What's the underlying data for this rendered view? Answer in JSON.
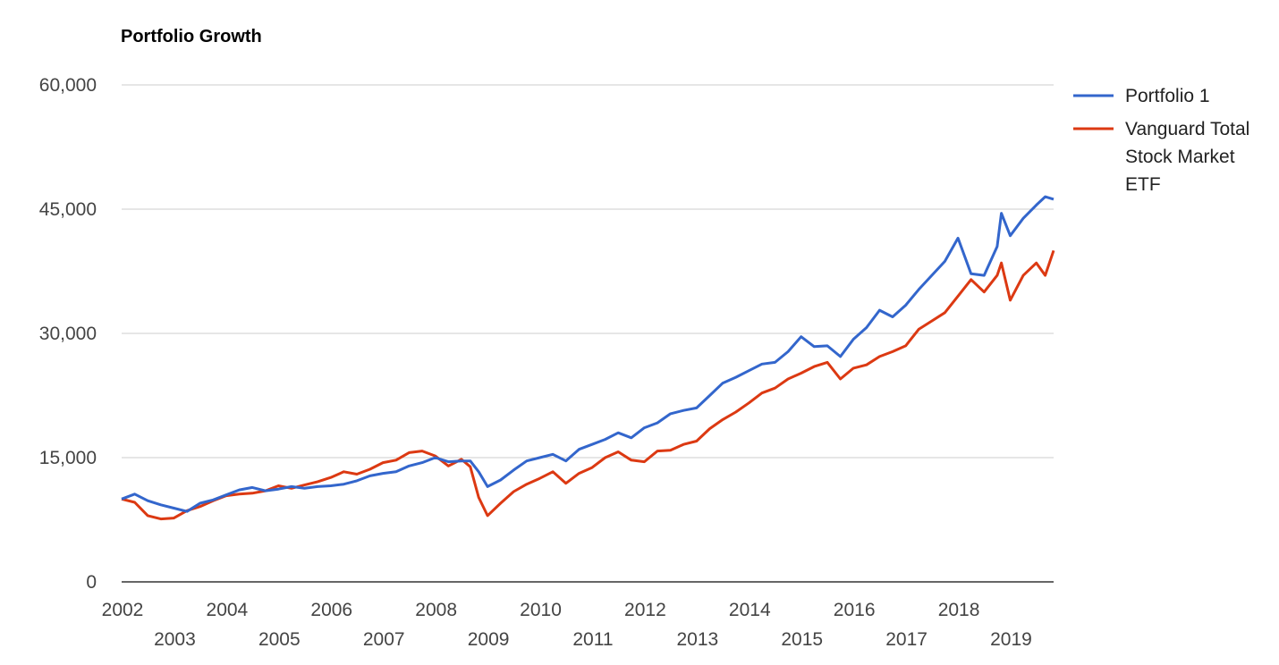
{
  "chart_data": {
    "type": "line",
    "title": "Portfolio Growth",
    "xlabel": "",
    "ylabel": "",
    "xlim": [
      2002.0,
      2019.83
    ],
    "ylim": [
      0,
      60000
    ],
    "y_ticks": [
      0,
      15000,
      30000,
      45000,
      60000
    ],
    "y_tick_labels": [
      "0",
      "15,000",
      "30,000",
      "45,000",
      "60,000"
    ],
    "x_ticks": [
      2002,
      2003,
      2004,
      2005,
      2006,
      2007,
      2008,
      2009,
      2010,
      2011,
      2012,
      2013,
      2014,
      2015,
      2016,
      2017,
      2018,
      2019
    ],
    "x_tick_labels": [
      "2002",
      "2003",
      "2004",
      "2005",
      "2006",
      "2007",
      "2008",
      "2009",
      "2010",
      "2011",
      "2012",
      "2013",
      "2014",
      "2015",
      "2016",
      "2017",
      "2018",
      "2019"
    ],
    "grid": true,
    "legend_position": "right",
    "series": [
      {
        "name": "Portfolio 1",
        "color": "#3366cc",
        "x": [
          2002.0,
          2002.25,
          2002.5,
          2002.75,
          2003.0,
          2003.25,
          2003.5,
          2003.75,
          2004.0,
          2004.25,
          2004.5,
          2004.75,
          2005.0,
          2005.25,
          2005.5,
          2005.75,
          2006.0,
          2006.25,
          2006.5,
          2006.75,
          2007.0,
          2007.25,
          2007.5,
          2007.75,
          2008.0,
          2008.25,
          2008.5,
          2008.67,
          2008.83,
          2009.0,
          2009.25,
          2009.5,
          2009.75,
          2010.0,
          2010.25,
          2010.5,
          2010.75,
          2011.0,
          2011.25,
          2011.5,
          2011.75,
          2012.0,
          2012.25,
          2012.5,
          2012.75,
          2013.0,
          2013.25,
          2013.5,
          2013.75,
          2014.0,
          2014.25,
          2014.5,
          2014.75,
          2015.0,
          2015.25,
          2015.5,
          2015.75,
          2016.0,
          2016.25,
          2016.5,
          2016.75,
          2017.0,
          2017.25,
          2017.5,
          2017.75,
          2018.0,
          2018.25,
          2018.5,
          2018.75,
          2018.83,
          2019.0,
          2019.25,
          2019.5,
          2019.67,
          2019.83
        ],
        "y": [
          10000,
          10600,
          9800,
          9300,
          8900,
          8500,
          9500,
          9900,
          10500,
          11100,
          11400,
          11000,
          11200,
          11500,
          11300,
          11500,
          11600,
          11800,
          12200,
          12800,
          13100,
          13300,
          14000,
          14400,
          15000,
          14500,
          14600,
          14600,
          13300,
          11500,
          12300,
          13500,
          14600,
          15000,
          15400,
          14600,
          16000,
          16600,
          17200,
          18000,
          17400,
          18600,
          19200,
          20300,
          20700,
          21000,
          22500,
          24000,
          24700,
          25500,
          26300,
          26500,
          27800,
          29600,
          28400,
          28500,
          27200,
          29300,
          30700,
          32800,
          32000,
          33400,
          35300,
          37000,
          38700,
          41500,
          37200,
          37000,
          40500,
          44500,
          41800,
          43900,
          45500,
          46500,
          46200
        ]
      },
      {
        "name": "Vanguard Total Stock Market ETF",
        "color": "#dc3912",
        "x": [
          2002.0,
          2002.25,
          2002.5,
          2002.75,
          2003.0,
          2003.25,
          2003.5,
          2003.75,
          2004.0,
          2004.25,
          2004.5,
          2004.75,
          2005.0,
          2005.25,
          2005.5,
          2005.75,
          2006.0,
          2006.25,
          2006.5,
          2006.75,
          2007.0,
          2007.25,
          2007.5,
          2007.75,
          2008.0,
          2008.25,
          2008.5,
          2008.67,
          2008.83,
          2009.0,
          2009.25,
          2009.5,
          2009.75,
          2010.0,
          2010.25,
          2010.5,
          2010.75,
          2011.0,
          2011.25,
          2011.5,
          2011.75,
          2012.0,
          2012.25,
          2012.5,
          2012.75,
          2013.0,
          2013.25,
          2013.5,
          2013.75,
          2014.0,
          2014.25,
          2014.5,
          2014.75,
          2015.0,
          2015.25,
          2015.5,
          2015.75,
          2016.0,
          2016.25,
          2016.5,
          2016.75,
          2017.0,
          2017.25,
          2017.5,
          2017.75,
          2018.0,
          2018.25,
          2018.5,
          2018.75,
          2018.83,
          2019.0,
          2019.25,
          2019.5,
          2019.67,
          2019.83
        ],
        "y": [
          10000,
          9600,
          8000,
          7600,
          7700,
          8600,
          9100,
          9800,
          10400,
          10600,
          10700,
          11000,
          11600,
          11300,
          11700,
          12100,
          12600,
          13300,
          13000,
          13600,
          14400,
          14700,
          15600,
          15800,
          15200,
          14000,
          14800,
          13900,
          10200,
          8000,
          9500,
          10900,
          11800,
          12500,
          13300,
          11900,
          13100,
          13800,
          15000,
          15700,
          14700,
          14500,
          15800,
          15900,
          16600,
          17000,
          18500,
          19600,
          20500,
          21600,
          22800,
          23400,
          24500,
          25200,
          26000,
          26500,
          24500,
          25800,
          26200,
          27200,
          27800,
          28500,
          30500,
          31500,
          32500,
          34500,
          36500,
          35000,
          37000,
          38500,
          34000,
          37000,
          38500,
          37000,
          40000
        ]
      }
    ]
  }
}
